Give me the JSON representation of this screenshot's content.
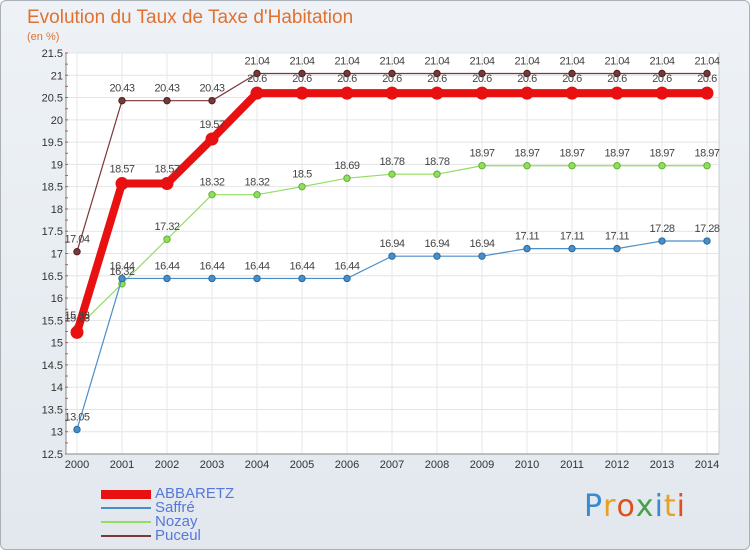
{
  "chart_data": {
    "type": "line",
    "title": "Evolution du Taux de Taxe d'Habitation",
    "ylabel": "(en %)",
    "xlabel": "",
    "categories": [
      "2000",
      "2001",
      "2002",
      "2003",
      "2004",
      "2005",
      "2006",
      "2007",
      "2008",
      "2009",
      "2010",
      "2011",
      "2012",
      "2013",
      "2014"
    ],
    "ylim": [
      12.5,
      21.5
    ],
    "yticks": [
      "12.5",
      "13",
      "13.5",
      "14",
      "14.5",
      "15",
      "15.5",
      "16",
      "16.5",
      "17",
      "17.5",
      "18",
      "18.5",
      "19",
      "19.5",
      "20",
      "20.5",
      "21",
      "21.5"
    ],
    "series": [
      {
        "name": "ABBARETZ",
        "color": "#e81010",
        "values": [
          15.23,
          18.57,
          18.57,
          19.57,
          20.6,
          20.6,
          20.6,
          20.6,
          20.6,
          20.6,
          20.6,
          20.6,
          20.6,
          20.6,
          20.6
        ],
        "labels": [
          "15.23",
          "18.57",
          "18.57",
          "19.57",
          "20.6",
          "20.6",
          "20.6",
          "20.6",
          "20.6",
          "20.6",
          "20.6",
          "20.6",
          "20.6",
          "20.6",
          "20.6"
        ]
      },
      {
        "name": "Saffré",
        "color": "#4a8ec8",
        "values": [
          13.05,
          16.44,
          16.44,
          16.44,
          16.44,
          16.44,
          16.44,
          16.94,
          16.94,
          16.94,
          17.11,
          17.11,
          17.11,
          17.28,
          17.28
        ],
        "labels": [
          "13.05",
          "16.44",
          "16.44",
          "16.44",
          "16.44",
          "16.44",
          "16.44",
          "16.94",
          "16.94",
          "16.94",
          "17.11",
          "17.11",
          "17.11",
          "17.28",
          "17.28"
        ]
      },
      {
        "name": "Nozay",
        "color": "#90dd60",
        "values": [
          15.33,
          16.32,
          17.32,
          18.32,
          18.32,
          18.5,
          18.69,
          18.78,
          18.78,
          18.97,
          18.97,
          18.97,
          18.97,
          18.97,
          18.97
        ],
        "labels": [
          "15.33",
          "16.32",
          "17.32",
          "18.32",
          "18.32",
          "18.5",
          "18.69",
          "18.78",
          "18.78",
          "18.97",
          "18.97",
          "18.97",
          "18.97",
          "18.97",
          "18.97"
        ]
      },
      {
        "name": "Puceul",
        "color": "#7a3838",
        "values": [
          17.04,
          20.43,
          20.43,
          20.43,
          21.04,
          21.04,
          21.04,
          21.04,
          21.04,
          21.04,
          21.04,
          21.04,
          21.04,
          21.04,
          21.04
        ],
        "labels": [
          "17.04",
          "20.43",
          "20.43",
          "20.43",
          "21.04",
          "21.04",
          "21.04",
          "21.04",
          "21.04",
          "21.04",
          "21.04",
          "21.04",
          "21.04",
          "21.04",
          "21.04"
        ]
      }
    ],
    "legend": [
      "ABBARETZ",
      "Saffré",
      "Nozay",
      "Puceul"
    ]
  },
  "logo": {
    "text": "Proxiti",
    "colors": [
      "#3a8ad0",
      "#e8a020",
      "#e0501a",
      "#4aa04a",
      "#3a8ad0",
      "#e8a020",
      "#e0501a"
    ]
  }
}
